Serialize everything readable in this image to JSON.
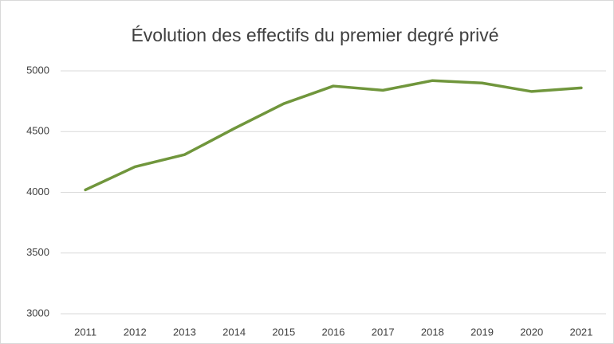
{
  "chart_data": {
    "type": "line",
    "title": "Évolution des effectifs du premier degré privé",
    "categories": [
      "2011",
      "2012",
      "2013",
      "2014",
      "2015",
      "2016",
      "2017",
      "2018",
      "2019",
      "2020",
      "2021"
    ],
    "values": [
      4020,
      4210,
      4310,
      4525,
      4730,
      4875,
      4840,
      4920,
      4900,
      4830,
      4860
    ],
    "color": "#70963c",
    "ylim": [
      3000,
      5000
    ],
    "yticks": [
      3000,
      3500,
      4000,
      4500,
      5000
    ],
    "grid": true
  }
}
